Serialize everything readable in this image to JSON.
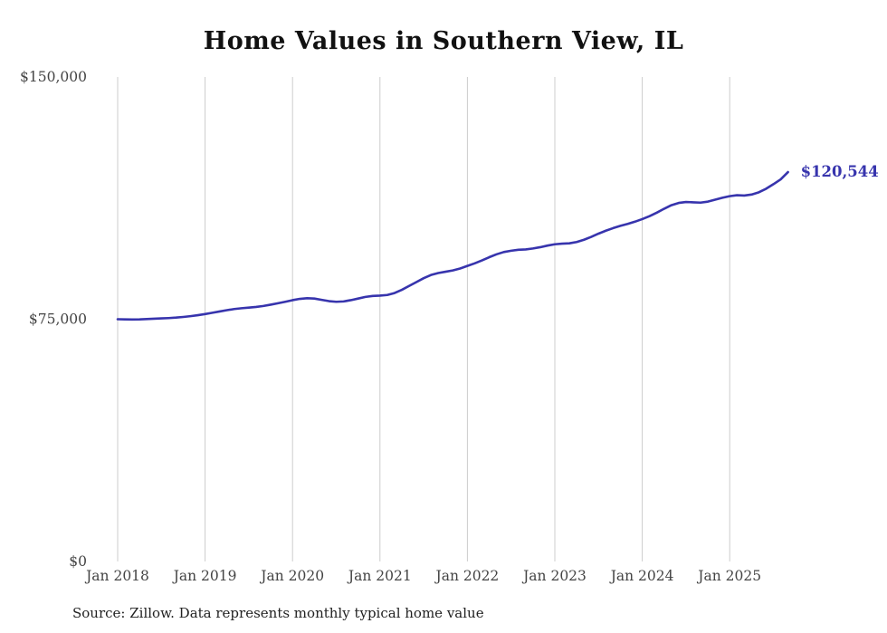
{
  "chart_data": {
    "type": "line",
    "title": "Home Values in Southern View, IL",
    "xlabel": "",
    "ylabel": "",
    "ylim": [
      0,
      150000
    ],
    "y_ticks": [
      0,
      75000,
      150000
    ],
    "y_tick_labels": [
      "$0",
      "$75,000",
      "$150,000"
    ],
    "x_tick_labels": [
      "Jan 2018",
      "Jan 2019",
      "Jan 2020",
      "Jan 2021",
      "Jan 2022",
      "Jan 2023",
      "Jan 2024",
      "Jan 2025"
    ],
    "grid": "vertical-only",
    "legend": "none",
    "line_color": "#3734ad",
    "grid_color": "#cccccc",
    "axis_label_color": "#444444",
    "end_label": "$120,544",
    "start_month": "Jan 2018",
    "end_month": "Sep 2025",
    "series": [
      {
        "name": "Monthly typical home value",
        "values": [
          75000,
          74950,
          74900,
          74950,
          75050,
          75150,
          75250,
          75350,
          75500,
          75700,
          75950,
          76250,
          76600,
          77000,
          77400,
          77800,
          78150,
          78400,
          78600,
          78800,
          79100,
          79500,
          79950,
          80400,
          80900,
          81300,
          81500,
          81400,
          81000,
          80600,
          80400,
          80500,
          80900,
          81400,
          81900,
          82200,
          82300,
          82500,
          83100,
          84100,
          85300,
          86500,
          87700,
          88700,
          89300,
          89700,
          90100,
          90700,
          91500,
          92300,
          93200,
          94200,
          95100,
          95800,
          96200,
          96500,
          96600,
          96900,
          97300,
          97800,
          98200,
          98400,
          98500,
          98900,
          99600,
          100500,
          101500,
          102400,
          103200,
          103900,
          104500,
          105200,
          106000,
          106900,
          108000,
          109200,
          110300,
          111000,
          111300,
          111200,
          111100,
          111400,
          112000,
          112600,
          113100,
          113400,
          113300,
          113600,
          114300,
          115400,
          116800,
          118300,
          120544
        ]
      }
    ]
  },
  "footer": {
    "source": "Source: Zillow. Data represents monthly typical home value"
  }
}
